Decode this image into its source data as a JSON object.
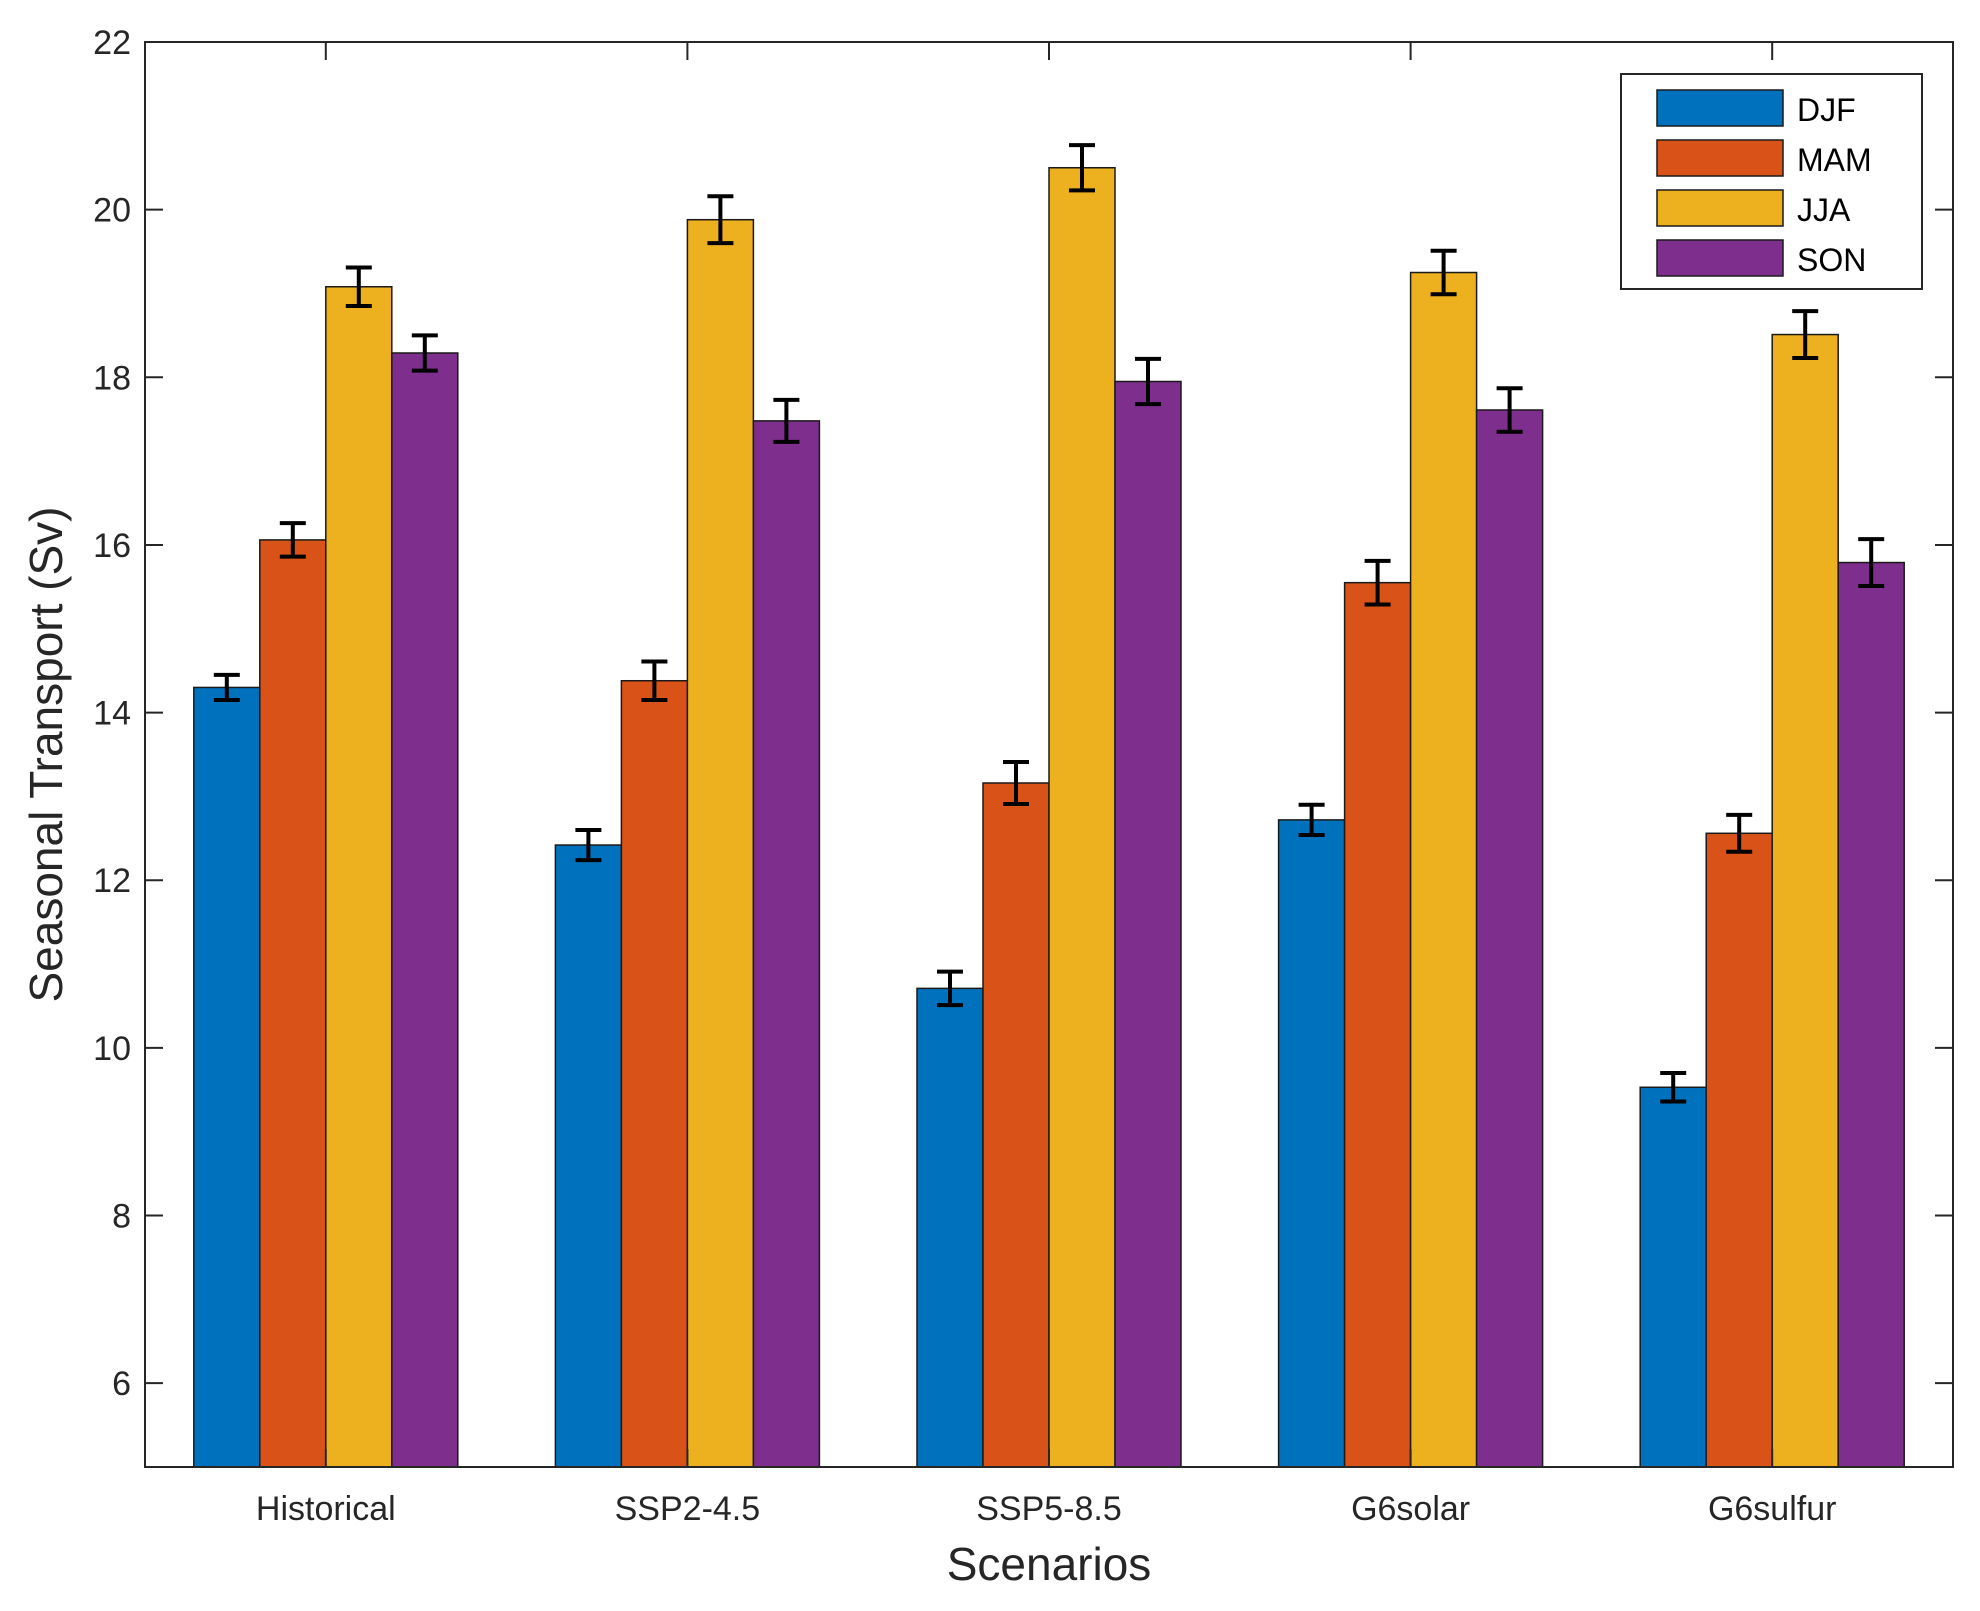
{
  "chart_data": {
    "type": "bar",
    "title": "",
    "xlabel": "Scenarios",
    "ylabel": "Seasonal Transport (Sv)",
    "categories": [
      "Historical",
      "SSP2-4.5",
      "SSP5-8.5",
      "G6solar",
      "G6sulfur"
    ],
    "ylim": [
      5,
      22
    ],
    "yticks": [
      6,
      8,
      10,
      12,
      14,
      16,
      18,
      20,
      22
    ],
    "grid": false,
    "legend_position": "top-right",
    "series": [
      {
        "name": "DJF",
        "color": "#0072BD",
        "values": [
          14.3,
          12.42,
          10.71,
          12.72,
          9.53
        ],
        "errors": [
          0.15,
          0.18,
          0.2,
          0.18,
          0.17
        ]
      },
      {
        "name": "MAM",
        "color": "#D95319",
        "values": [
          16.06,
          14.38,
          13.16,
          15.55,
          12.56
        ],
        "errors": [
          0.2,
          0.23,
          0.25,
          0.26,
          0.22
        ]
      },
      {
        "name": "JJA",
        "color": "#EDB120",
        "values": [
          19.08,
          19.88,
          20.5,
          19.25,
          18.51
        ],
        "errors": [
          0.23,
          0.28,
          0.27,
          0.26,
          0.28
        ]
      },
      {
        "name": "SON",
        "color": "#7E2F8E",
        "values": [
          18.29,
          17.48,
          17.95,
          17.61,
          15.79
        ],
        "errors": [
          0.21,
          0.25,
          0.27,
          0.26,
          0.28
        ]
      }
    ]
  }
}
